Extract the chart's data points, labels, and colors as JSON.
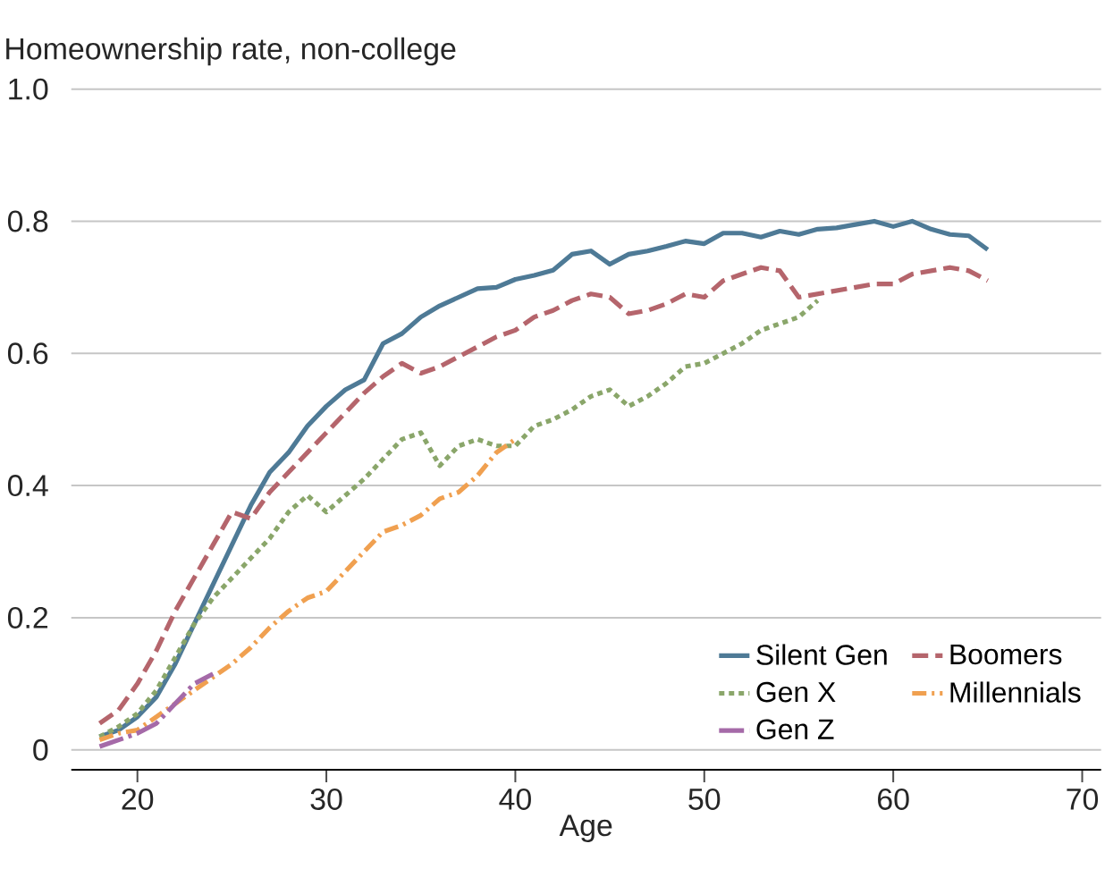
{
  "chart_data": {
    "type": "line",
    "ylabel": "Homeownership rate, non-college",
    "xlabel": "Age",
    "xlim": [
      16.5,
      71
    ],
    "xticks": [
      20,
      30,
      40,
      50,
      60,
      70
    ],
    "ylim": [
      -0.03,
      1.0
    ],
    "yticks": [
      {
        "value": 0,
        "label": "0"
      },
      {
        "value": 0.2,
        "label": "0.2"
      },
      {
        "value": 0.4,
        "label": "0.4"
      },
      {
        "value": 0.6,
        "label": "0.6"
      },
      {
        "value": 0.8,
        "label": "0.8"
      },
      {
        "value": 1.0,
        "label": "1.0"
      }
    ],
    "grid": "y",
    "legend": "bottom right",
    "marker": "none",
    "series": [
      {
        "name": "Silent Gen",
        "color": "#4e7a96",
        "line_style": "solid",
        "x": [
          18,
          19,
          20,
          21,
          22,
          23,
          24,
          25,
          26,
          27,
          28,
          29,
          30,
          31,
          32,
          33,
          34,
          35,
          36,
          37,
          38,
          39,
          40,
          41,
          42,
          43,
          44,
          45,
          46,
          47,
          48,
          49,
          50,
          51,
          52,
          53,
          54,
          55,
          56,
          57,
          58,
          59,
          60,
          61,
          62,
          63,
          64,
          65
        ],
        "values": [
          0.02,
          0.03,
          0.05,
          0.08,
          0.13,
          0.19,
          0.25,
          0.31,
          0.37,
          0.42,
          0.45,
          0.49,
          0.52,
          0.545,
          0.56,
          0.615,
          0.63,
          0.655,
          0.672,
          0.685,
          0.698,
          0.7,
          0.712,
          0.718,
          0.726,
          0.75,
          0.755,
          0.735,
          0.75,
          0.755,
          0.762,
          0.77,
          0.766,
          0.782,
          0.782,
          0.776,
          0.785,
          0.78,
          0.788,
          0.79,
          0.795,
          0.8,
          0.792,
          0.8,
          0.788,
          0.78,
          0.778,
          0.757
        ]
      },
      {
        "name": "Boomers",
        "color": "#b5656c",
        "line_style": "dashed",
        "x": [
          18,
          19,
          20,
          21,
          22,
          23,
          24,
          25,
          26,
          27,
          28,
          29,
          30,
          31,
          32,
          33,
          34,
          35,
          36,
          37,
          38,
          39,
          40,
          41,
          42,
          43,
          44,
          45,
          46,
          47,
          48,
          49,
          50,
          51,
          52,
          53,
          54,
          55,
          56,
          57,
          58,
          59,
          60,
          61,
          62,
          63,
          64,
          65
        ],
        "values": [
          0.04,
          0.06,
          0.1,
          0.15,
          0.21,
          0.26,
          0.31,
          0.36,
          0.35,
          0.39,
          0.42,
          0.45,
          0.48,
          0.51,
          0.54,
          0.565,
          0.585,
          0.57,
          0.58,
          0.595,
          0.61,
          0.625,
          0.635,
          0.655,
          0.665,
          0.68,
          0.69,
          0.685,
          0.66,
          0.665,
          0.675,
          0.69,
          0.685,
          0.71,
          0.72,
          0.73,
          0.725,
          0.685,
          0.69,
          0.695,
          0.7,
          0.705,
          0.705,
          0.72,
          0.725,
          0.73,
          0.725,
          0.71
        ]
      },
      {
        "name": "Gen X",
        "color": "#8aa66a",
        "line_style": "dotted",
        "x": [
          18,
          19,
          20,
          21,
          22,
          23,
          24,
          25,
          26,
          27,
          28,
          29,
          30,
          31,
          32,
          33,
          34,
          35,
          36,
          37,
          38,
          39,
          40,
          41,
          42,
          43,
          44,
          45,
          46,
          47,
          48,
          49,
          50,
          51,
          52,
          53,
          54,
          55,
          56
        ],
        "values": [
          0.02,
          0.035,
          0.055,
          0.09,
          0.14,
          0.19,
          0.23,
          0.26,
          0.29,
          0.32,
          0.36,
          0.385,
          0.36,
          0.385,
          0.41,
          0.44,
          0.47,
          0.48,
          0.43,
          0.46,
          0.47,
          0.46,
          0.46,
          0.49,
          0.5,
          0.515,
          0.535,
          0.545,
          0.52,
          0.535,
          0.555,
          0.58,
          0.585,
          0.6,
          0.615,
          0.635,
          0.645,
          0.655,
          0.68
        ]
      },
      {
        "name": "Millennials",
        "color": "#f0a050",
        "line_style": "dashdot",
        "x": [
          18,
          19,
          20,
          21,
          22,
          23,
          24,
          25,
          26,
          27,
          28,
          29,
          30,
          31,
          32,
          33,
          34,
          35,
          36,
          37,
          38,
          39,
          40
        ],
        "values": [
          0.015,
          0.025,
          0.03,
          0.05,
          0.07,
          0.09,
          0.11,
          0.13,
          0.155,
          0.185,
          0.21,
          0.23,
          0.24,
          0.27,
          0.3,
          0.33,
          0.34,
          0.355,
          0.38,
          0.39,
          0.415,
          0.45,
          0.47
        ]
      },
      {
        "name": "Gen Z",
        "color": "#a56aa8",
        "line_style": "longdashdot",
        "x": [
          18,
          19,
          20,
          21,
          22,
          23,
          24
        ],
        "values": [
          0.005,
          0.015,
          0.025,
          0.04,
          0.07,
          0.1,
          0.115
        ]
      }
    ]
  }
}
